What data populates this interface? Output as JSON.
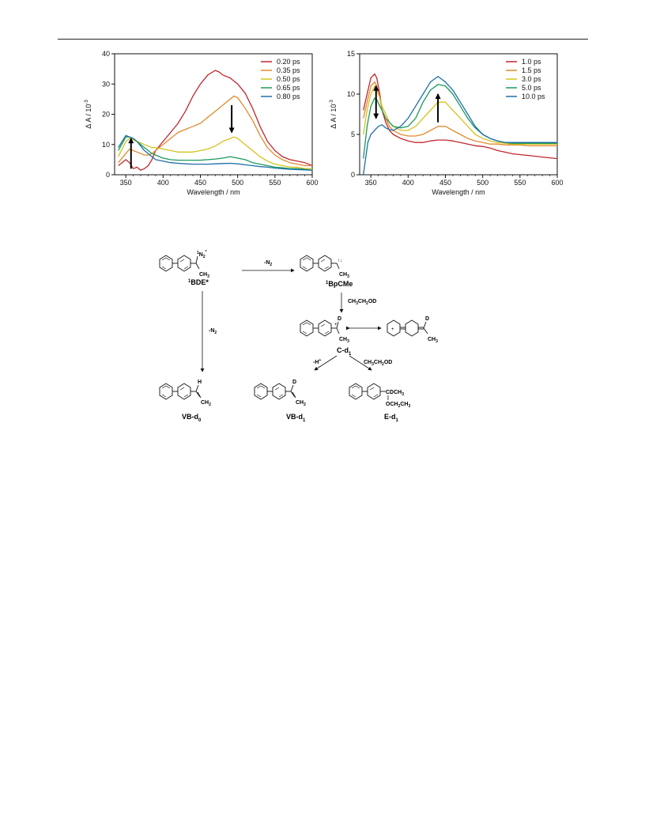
{
  "chart_data": [
    {
      "type": "line",
      "xlabel": "Wavelength / nm",
      "ylabel": "Δ A / 10",
      "ylabel_exp": "-3",
      "xlim": [
        335,
        600
      ],
      "ylim": [
        0,
        40
      ],
      "xticks": [
        350,
        400,
        450,
        500,
        550,
        600
      ],
      "yticks": [
        0,
        10,
        20,
        30,
        40
      ],
      "grid": false,
      "legend_position": "top-right",
      "annotations": [
        {
          "type": "arrow-up",
          "x": 357,
          "y_from": 2,
          "y_to": 12
        },
        {
          "type": "arrow-down",
          "x": 492,
          "y_from": 23,
          "y_to": 14
        }
      ],
      "series": [
        {
          "name": "0.20 ps",
          "color": "#c0272d",
          "x": [
            340,
            350,
            355,
            360,
            365,
            370,
            375,
            380,
            385,
            390,
            400,
            410,
            420,
            430,
            440,
            450,
            460,
            470,
            475,
            480,
            490,
            500,
            510,
            520,
            530,
            540,
            550,
            560,
            570,
            580,
            590,
            600
          ],
          "y": [
            3,
            5,
            4,
            2,
            2.5,
            1.5,
            2,
            3,
            5,
            8,
            11,
            14,
            17,
            21,
            26,
            30,
            33,
            34.5,
            34,
            33,
            32,
            30,
            27,
            22,
            16,
            11,
            8,
            6,
            5,
            4.5,
            4,
            3
          ]
        },
        {
          "name": "0.35 ps",
          "color": "#e08a2e",
          "x": [
            340,
            350,
            355,
            360,
            365,
            370,
            375,
            380,
            385,
            390,
            400,
            410,
            420,
            430,
            440,
            450,
            460,
            470,
            480,
            490,
            495,
            500,
            510,
            520,
            530,
            540,
            550,
            560,
            570,
            580,
            590,
            600
          ],
          "y": [
            4,
            7,
            8.5,
            8,
            7.5,
            7,
            6.5,
            6.5,
            7,
            8,
            10,
            12,
            14,
            15,
            16,
            17,
            19,
            21,
            23,
            25,
            26,
            25.5,
            22,
            18,
            13,
            9,
            6.5,
            5,
            4,
            3.5,
            3,
            3
          ]
        },
        {
          "name": "0.50 ps",
          "color": "#d4c21e",
          "x": [
            340,
            350,
            355,
            360,
            365,
            370,
            375,
            380,
            385,
            390,
            400,
            410,
            420,
            430,
            440,
            450,
            460,
            470,
            480,
            490,
            495,
            500,
            510,
            520,
            530,
            540,
            550,
            560,
            570,
            580,
            590,
            600
          ],
          "y": [
            6,
            11,
            12,
            11.5,
            11,
            10.5,
            10,
            9.5,
            9,
            9,
            8.5,
            8,
            7.5,
            7.5,
            7.5,
            8,
            8.5,
            9.5,
            11,
            12,
            12.5,
            12,
            10,
            8,
            6,
            4.5,
            3.5,
            3,
            2.5,
            2.5,
            2,
            2
          ]
        },
        {
          "name": "0.65 ps",
          "color": "#1a9a5a",
          "x": [
            340,
            350,
            355,
            360,
            365,
            370,
            375,
            380,
            385,
            390,
            400,
            410,
            420,
            430,
            440,
            450,
            460,
            470,
            480,
            490,
            500,
            510,
            520,
            530,
            540,
            550,
            560,
            570,
            580,
            590,
            600
          ],
          "y": [
            8,
            12.5,
            12.5,
            12,
            11,
            10,
            9,
            8,
            7,
            6.5,
            5.5,
            5,
            4.8,
            4.8,
            4.8,
            4.8,
            5,
            5.2,
            5.5,
            6,
            5.5,
            5,
            4,
            3.5,
            3,
            2.5,
            2.3,
            2,
            2,
            1.8,
            1.5
          ]
        },
        {
          "name": "0.80 ps",
          "color": "#1f6fa8",
          "x": [
            340,
            350,
            355,
            360,
            365,
            370,
            375,
            380,
            385,
            390,
            400,
            410,
            420,
            430,
            440,
            450,
            460,
            470,
            480,
            490,
            500,
            510,
            520,
            530,
            540,
            550,
            560,
            570,
            580,
            590,
            600
          ],
          "y": [
            9,
            13,
            12.5,
            12,
            11,
            9.5,
            8,
            7,
            6,
            5,
            4.5,
            4,
            3.8,
            3.6,
            3.5,
            3.5,
            3.5,
            3.6,
            3.7,
            3.8,
            3.6,
            3.3,
            3,
            2.7,
            2.5,
            2.2,
            2,
            1.8,
            1.7,
            1.6,
            1.5
          ]
        }
      ]
    },
    {
      "type": "line",
      "xlabel": "Wavelength / nm",
      "ylabel": "Δ A / 10",
      "ylabel_exp": "-3",
      "xlim": [
        335,
        600
      ],
      "ylim": [
        0,
        15
      ],
      "xticks": [
        350,
        400,
        450,
        500,
        550,
        600
      ],
      "yticks": [
        0,
        5,
        10,
        15
      ],
      "grid": false,
      "legend_position": "top-right",
      "annotations": [
        {
          "type": "arrow-updown",
          "x": 357,
          "y_from": 11,
          "y_to": 7
        },
        {
          "type": "arrow-up",
          "x": 440,
          "y_from": 6.5,
          "y_to": 10
        }
      ],
      "series": [
        {
          "name": "1.0 ps",
          "color": "#c0272d",
          "x": [
            340,
            345,
            350,
            355,
            358,
            362,
            365,
            370,
            375,
            380,
            390,
            400,
            410,
            420,
            430,
            440,
            450,
            460,
            470,
            480,
            490,
            500,
            510,
            520,
            530,
            540,
            550,
            560,
            570,
            580,
            590,
            600
          ],
          "y": [
            8,
            10,
            12,
            12.5,
            12,
            10,
            8,
            6.5,
            5.5,
            5,
            4.5,
            4.2,
            4,
            4,
            4.2,
            4.3,
            4.3,
            4.2,
            4,
            3.8,
            3.6,
            3.5,
            3.3,
            3,
            2.8,
            2.6,
            2.5,
            2.4,
            2.3,
            2.2,
            2.1,
            2
          ]
        },
        {
          "name": "1.5 ps",
          "color": "#e08a2e",
          "x": [
            340,
            345,
            350,
            355,
            358,
            362,
            365,
            370,
            375,
            380,
            390,
            400,
            410,
            420,
            430,
            440,
            450,
            460,
            470,
            480,
            490,
            500,
            510,
            520,
            530,
            540,
            550,
            560,
            570,
            580,
            590,
            600
          ],
          "y": [
            7,
            9,
            11,
            11.5,
            11,
            9.5,
            8,
            7,
            6,
            5.5,
            5,
            4.8,
            4.8,
            5,
            5.5,
            6,
            6,
            5.5,
            5,
            4.5,
            4.2,
            4,
            3.8,
            3.8,
            3.7,
            3.7,
            3.7,
            3.6,
            3.6,
            3.6,
            3.6,
            3.6
          ]
        },
        {
          "name": "3.0 ps",
          "color": "#d4c21e",
          "x": [
            340,
            345,
            350,
            355,
            358,
            362,
            365,
            370,
            375,
            380,
            390,
            400,
            410,
            420,
            430,
            440,
            450,
            460,
            470,
            480,
            490,
            500,
            510,
            520,
            530,
            540,
            550,
            560,
            570,
            580,
            590,
            600
          ],
          "y": [
            5,
            8,
            10,
            11,
            10.5,
            9.5,
            8.5,
            7.5,
            6.5,
            6,
            5.5,
            5.5,
            6,
            7,
            8,
            9,
            9,
            8,
            7,
            6,
            5,
            4.5,
            4.2,
            4,
            3.9,
            3.8,
            3.8,
            3.8,
            3.8,
            3.8,
            3.8,
            3.8
          ]
        },
        {
          "name": "5.0 ps",
          "color": "#1a9a5a",
          "x": [
            340,
            345,
            350,
            355,
            358,
            362,
            365,
            370,
            375,
            380,
            390,
            400,
            410,
            420,
            430,
            440,
            450,
            460,
            470,
            480,
            490,
            500,
            510,
            520,
            530,
            540,
            550,
            560,
            570,
            580,
            590,
            600
          ],
          "y": [
            2,
            6,
            8.5,
            9.5,
            9.3,
            8.5,
            8,
            7,
            6.5,
            6,
            5.8,
            6,
            7,
            9,
            10.5,
            11.2,
            11,
            10,
            8.5,
            7,
            5.8,
            5,
            4.5,
            4.2,
            4,
            3.9,
            3.9,
            3.9,
            3.9,
            3.9,
            3.9,
            3.9
          ]
        },
        {
          "name": "10.0 ps",
          "color": "#1f6fa8",
          "x": [
            340,
            343,
            346,
            350,
            355,
            360,
            365,
            370,
            375,
            380,
            390,
            400,
            410,
            420,
            430,
            440,
            450,
            460,
            470,
            480,
            490,
            500,
            510,
            520,
            530,
            540,
            550,
            560,
            570,
            580,
            590,
            600
          ],
          "y": [
            0,
            2,
            4,
            5,
            5.5,
            6,
            6.2,
            5.8,
            5.6,
            5.5,
            6,
            7,
            8.5,
            10,
            11.5,
            12.2,
            11.5,
            10.5,
            9,
            7.5,
            6,
            5,
            4.5,
            4.2,
            4,
            4,
            4,
            4,
            4,
            4,
            4,
            4
          ]
        }
      ]
    }
  ],
  "scheme": {
    "labels": {
      "bde": "BDE*",
      "bde_sup": "1",
      "bpcme": "BpCMe",
      "bpcme_sup": "1",
      "c_d1": "C-d",
      "c_d1_sub": "1",
      "vb_d0": "VB-d",
      "vb_d0_sub": "0",
      "vb_d1": "VB-d",
      "vb_d1_sub": "1",
      "e_d1": "E-d",
      "e_d1_sub": "1"
    },
    "arrow_labels": {
      "minus_n2_top": "-N",
      "minus_n2_top_sub": "2",
      "minus_n2_side": "-N",
      "minus_n2_side_sub": "2",
      "ch3ch2od_1": "CH",
      "ch3ch2od_2": "CH",
      "minus_h": "-H",
      "minus_h_sup": "+"
    },
    "groups": {
      "n2_star": "N",
      "n2_sub": "2",
      "n2_sup": "*",
      "n2_pre": "1",
      "ch3": "CH",
      "ch3_sub": "3",
      "d": "D",
      "h": "H",
      "ch2": "CH",
      "ch2_sub": "2",
      "cdch3": "CDCH",
      "cdch3_sub": "3",
      "och2ch3": "OCH",
      "plus": "+"
    }
  }
}
